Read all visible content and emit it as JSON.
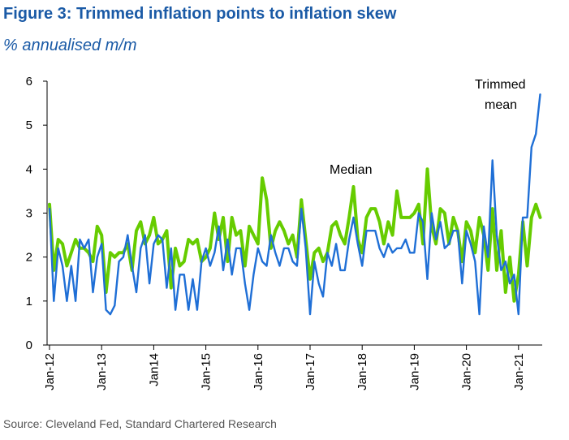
{
  "figure": {
    "title": "Figure 3: Trimmed inflation points to inflation skew",
    "subtitle": "% annualised m/m",
    "source": "Source: Cleveland Fed, Standard Chartered Research"
  },
  "colors": {
    "median": "#66cc00",
    "trimmed": "#1f6fd6",
    "title": "#1a5aa6"
  },
  "chart_data": {
    "type": "line",
    "ylim": [
      0,
      6
    ],
    "yticks": [
      0,
      1,
      2,
      3,
      4,
      5,
      6
    ],
    "x_start": "Jan-12",
    "x_end": "Jun-21",
    "xticks": [
      "Jan-12",
      "Jan-13",
      "Jan14",
      "Jan-15",
      "Jan-16",
      "Jan-17",
      "Jan-18",
      "Jan-19",
      "Jan-20",
      "Jan-21"
    ],
    "annotations": [
      {
        "text": "Median",
        "series": "Median"
      },
      {
        "text": "Trimmed",
        "series": "Trimmed mean"
      },
      {
        "text": "mean",
        "series": "Trimmed mean"
      }
    ],
    "series": [
      {
        "name": "Median",
        "values": [
          3.2,
          1.7,
          2.4,
          2.3,
          1.8,
          2.1,
          2.4,
          2.2,
          2.2,
          2.1,
          1.9,
          2.7,
          2.5,
          1.2,
          2.1,
          2.0,
          2.1,
          2.1,
          2.3,
          1.7,
          2.6,
          2.8,
          2.3,
          2.5,
          2.9,
          2.3,
          2.4,
          2.6,
          1.3,
          2.2,
          1.8,
          1.9,
          2.4,
          2.3,
          2.4,
          1.9,
          2.0,
          2.2,
          3.0,
          2.4,
          2.9,
          1.9,
          2.9,
          2.5,
          2.6,
          1.8,
          2.7,
          2.5,
          2.3,
          3.8,
          3.3,
          2.2,
          2.6,
          2.8,
          2.6,
          2.3,
          2.5,
          2.0,
          3.3,
          2.4,
          1.5,
          2.1,
          2.2,
          1.9,
          2.1,
          2.7,
          2.8,
          2.5,
          2.3,
          2.9,
          3.6,
          2.4,
          2.1,
          2.9,
          3.1,
          3.1,
          2.8,
          2.3,
          2.8,
          2.5,
          3.5,
          2.9,
          2.9,
          2.9,
          3.0,
          3.2,
          2.3,
          4.0,
          2.7,
          2.3,
          3.1,
          3.0,
          2.3,
          2.9,
          2.6,
          1.9,
          2.8,
          2.6,
          2.1,
          2.9,
          2.5,
          1.7,
          3.1,
          1.7,
          2.6,
          1.2,
          2.0,
          1.0,
          1.6,
          2.8,
          1.8,
          2.9,
          3.2,
          2.9
        ]
      },
      {
        "name": "Trimmed mean",
        "values": [
          3.1,
          1.0,
          2.2,
          1.8,
          1.0,
          1.8,
          1.0,
          2.4,
          2.2,
          2.4,
          1.2,
          2.0,
          2.3,
          0.8,
          0.7,
          0.9,
          1.9,
          2.0,
          2.5,
          1.8,
          1.2,
          2.2,
          2.5,
          1.4,
          2.3,
          2.5,
          2.4,
          1.3,
          2.2,
          0.8,
          1.6,
          1.6,
          0.8,
          1.5,
          0.8,
          1.9,
          2.2,
          1.8,
          2.1,
          2.7,
          1.7,
          2.4,
          1.6,
          2.2,
          2.2,
          1.4,
          0.8,
          1.6,
          2.2,
          1.9,
          1.8,
          2.5,
          2.1,
          1.8,
          2.2,
          2.2,
          1.9,
          1.8,
          3.1,
          2.2,
          0.7,
          1.9,
          1.4,
          1.1,
          2.1,
          1.8,
          2.3,
          1.7,
          1.7,
          2.4,
          2.9,
          2.3,
          1.8,
          2.6,
          2.6,
          2.6,
          2.2,
          2.0,
          2.3,
          2.1,
          2.2,
          2.2,
          2.4,
          2.1,
          2.1,
          3.0,
          2.8,
          1.5,
          3.0,
          2.4,
          2.8,
          2.2,
          2.3,
          2.6,
          2.6,
          1.4,
          2.6,
          2.3,
          1.9,
          0.7,
          2.7,
          2.0,
          4.2,
          2.5,
          1.7,
          1.9,
          1.4,
          1.6,
          0.7,
          2.9,
          2.9,
          4.5,
          4.8,
          5.7
        ]
      }
    ]
  }
}
